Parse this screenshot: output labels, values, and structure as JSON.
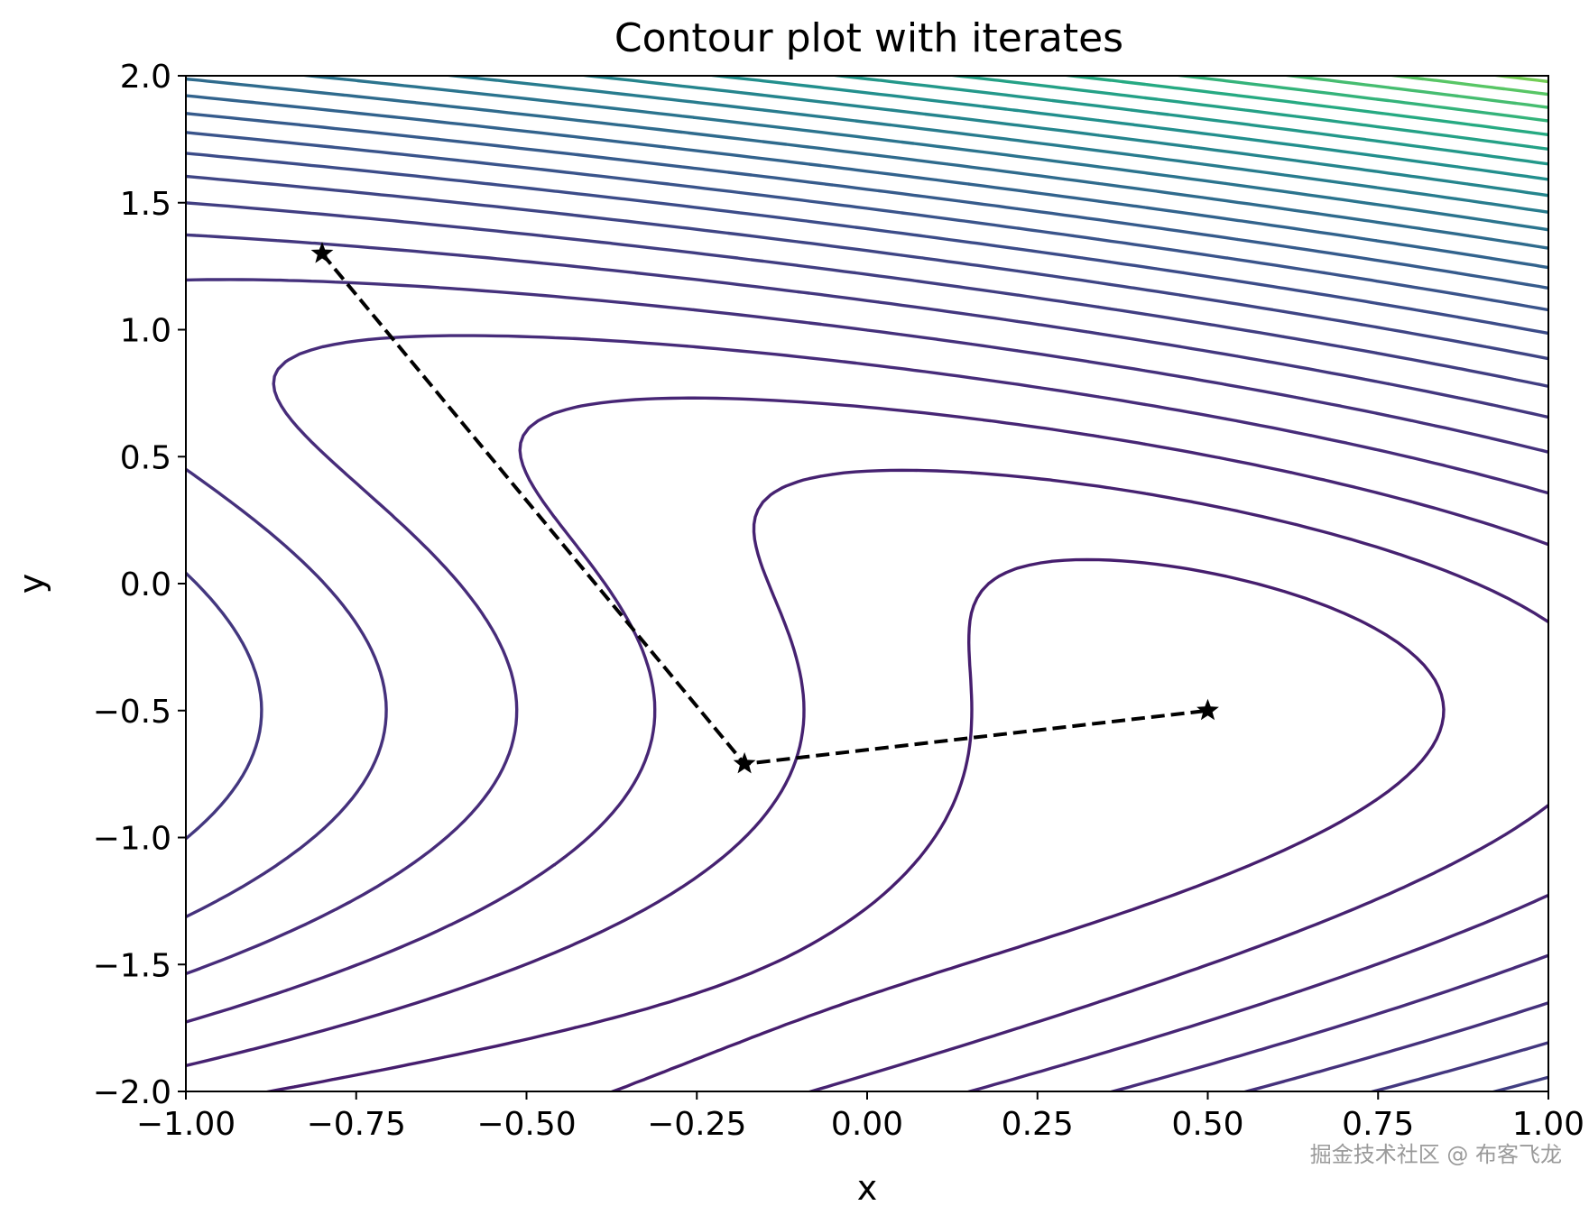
{
  "chart_data": {
    "type": "contour",
    "title": "Contour plot with iterates",
    "xlabel": "x",
    "ylabel": "y",
    "xlim": [
      -1.0,
      1.0
    ],
    "ylim": [
      -2.0,
      2.0
    ],
    "x_ticks": [
      "−1.00",
      "−0.75",
      "−0.50",
      "−0.25",
      "0.00",
      "0.25",
      "0.50",
      "0.75",
      "1.00"
    ],
    "x_tick_values": [
      -1.0,
      -0.75,
      -0.5,
      -0.25,
      0.0,
      0.25,
      0.5,
      0.75,
      1.0
    ],
    "y_ticks": [
      "2.0",
      "1.5",
      "1.0",
      "0.5",
      "0.0",
      "−0.5",
      "−1.0",
      "−1.5",
      "−2.0"
    ],
    "y_tick_values": [
      2.0,
      1.5,
      1.0,
      0.5,
      0.0,
      -0.5,
      -1.0,
      -1.5,
      -2.0
    ],
    "colormap": "viridis",
    "contour_center": [
      0.5,
      -0.5
    ],
    "iterates": {
      "x": [
        -0.8,
        -0.18,
        0.5
      ],
      "y": [
        1.3,
        -0.71,
        -0.5
      ],
      "marker": "star",
      "linestyle": "dashed",
      "color": "#000000"
    }
  },
  "watermark": "掘金技术社区 @ 布客飞龙"
}
